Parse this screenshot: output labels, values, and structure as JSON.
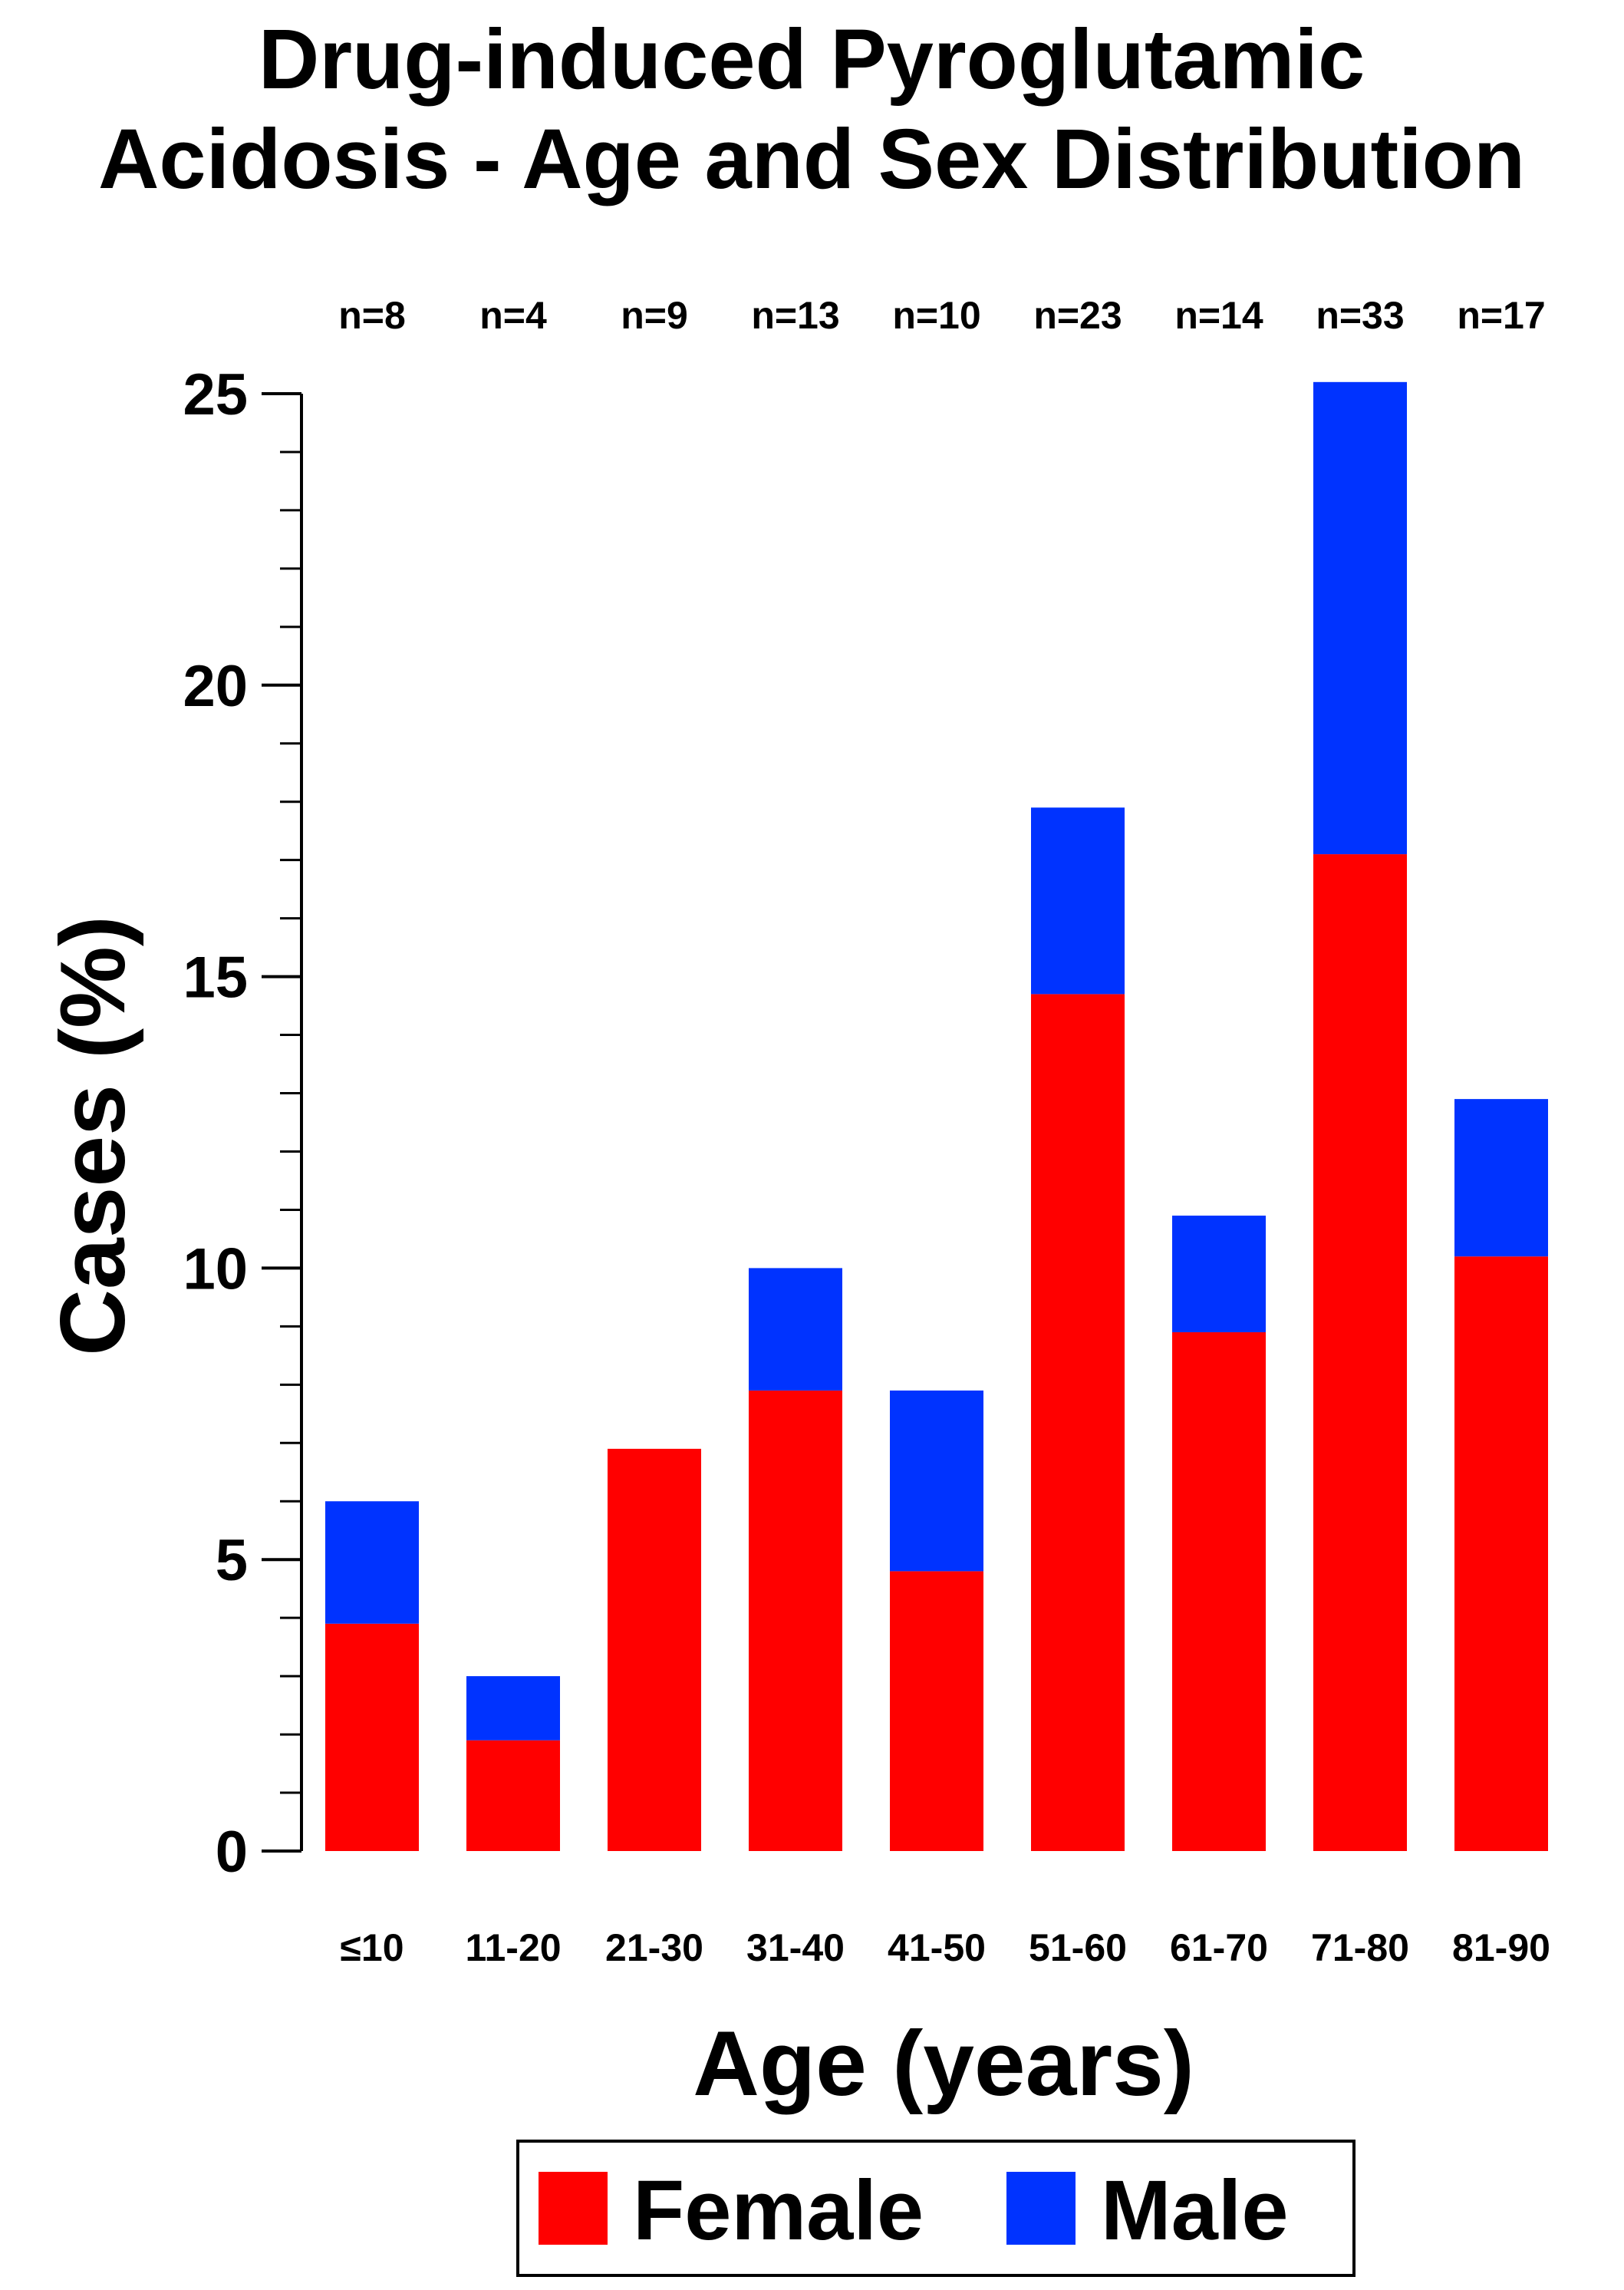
{
  "chart_data": {
    "type": "bar",
    "stacked": true,
    "title_lines": [
      "Drug-induced Pyroglutamic",
      "Acidosis - Age and Sex Distribution"
    ],
    "xlabel": "Age (years)",
    "ylabel": "Cases (%)",
    "ylim": [
      0,
      25
    ],
    "y_ticks": [
      "0",
      "5",
      "10",
      "15",
      "20",
      "25"
    ],
    "categories": [
      "≤10",
      "11-20",
      "21-30",
      "31-40",
      "41-50",
      "51-60",
      "61-70",
      "71-80",
      "81-90"
    ],
    "n_labels": [
      "n=8",
      "n=4",
      "n=9",
      "n=13",
      "n=10",
      "n=23",
      "n=14",
      "n=33",
      "n=17"
    ],
    "series": [
      {
        "name": "Female",
        "color": "#ff0000",
        "values": [
          3.9,
          1.9,
          6.9,
          7.9,
          4.8,
          14.7,
          8.9,
          17.1,
          10.2
        ]
      },
      {
        "name": "Male",
        "color": "#0033ff",
        "values": [
          2.1,
          1.1,
          0.0,
          2.1,
          3.1,
          3.2,
          2.0,
          8.1,
          2.7
        ]
      }
    ],
    "grid": false,
    "legend_position": "bottom"
  }
}
